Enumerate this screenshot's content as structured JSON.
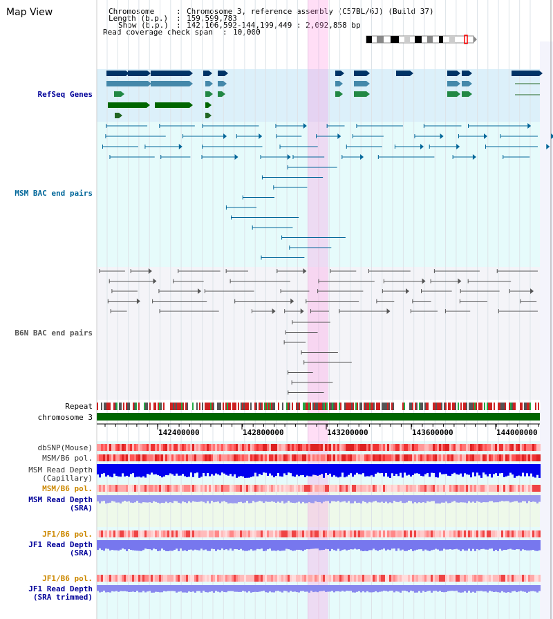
{
  "title": "Map View",
  "info": {
    "chromosome_key": "Chromosome",
    "chromosome_val": "Chromosome 3, reference assembly (C57BL/6J) (Build 37)",
    "length_key": "Length (b.p.)",
    "length_val": "159,599,783",
    "show_key": "Show (b.p.)",
    "show_val": "142,106,592-144,199,449 : 2,092,858 bp",
    "span_key": "Read coverage check span",
    "span_val": "10,000"
  },
  "tracks": {
    "refseq": "RefSeq Genes",
    "msm_bac": "MSM BAC end pairs",
    "b6n_bac": "B6N BAC end pairs",
    "repeat": "Repeat",
    "chromosome": "chromosome 3",
    "dbsnp": "dbSNP(Mouse)",
    "msm_pol": "MSM/B6 pol.",
    "msm_depth_cap_1": "MSM Read Depth",
    "msm_depth_cap_2": "(Capillary)",
    "msm_pol_sra": "MSM/B6 pol.",
    "msm_depth_sra_1": "MSM Read Depth",
    "msm_depth_sra_2": "(SRA)",
    "jf1_pol_1": "JF1/B6 pol.",
    "jf1_depth_sra_1": "JF1 Read Depth",
    "jf1_depth_sra_2": "(SRA)",
    "jf1_pol_2": "JF1/B6 pol.",
    "jf1_depth_trim_1": "JF1 Read Depth",
    "jf1_depth_trim_2": "(SRA trimmed)"
  },
  "axis_ticks": [
    "142400000",
    "142800000",
    "143200000",
    "143600000",
    "144000000"
  ],
  "colors": {
    "refseq_label": "#000099",
    "msm_label": "#006699",
    "b6n_label": "#555555",
    "jf1_pol_label": "#cc8800",
    "highlight": "#ff88dd",
    "chromosome_bar": "#006600"
  }
}
